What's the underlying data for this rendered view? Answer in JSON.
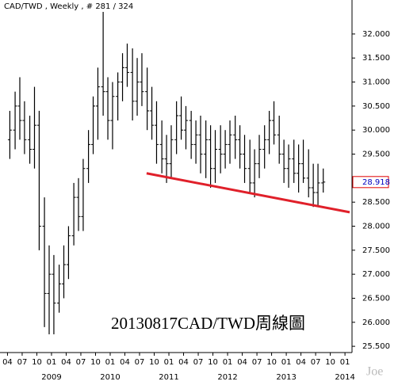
{
  "chart_data": {
    "type": "ohlc",
    "title": "CAD/TWD , Weekly , # 281 / 324",
    "annotation": "20130817CAD/TWD周線圖",
    "watermark": "Joe",
    "color": "#000000",
    "last_price": {
      "value": 28.918,
      "label": "28.918",
      "color": "#e00000"
    },
    "trendline": {
      "x": [
        2010.62,
        2014.08
      ],
      "y": [
        29.1,
        28.29
      ],
      "color": "#e0202a"
    },
    "xlim": [
      2008.19,
      2014.12
    ],
    "ylim": [
      25.37,
      32.46
    ],
    "x": [
      2008.29,
      2008.38,
      2008.46,
      2008.54,
      2008.63,
      2008.71,
      2008.79,
      2008.88,
      2008.96,
      2009.04,
      2009.13,
      2009.21,
      2009.29,
      2009.38,
      2009.46,
      2009.54,
      2009.63,
      2009.71,
      2009.79,
      2009.88,
      2009.96,
      2010.04,
      2010.13,
      2010.21,
      2010.29,
      2010.38,
      2010.46,
      2010.54,
      2010.63,
      2010.71,
      2010.79,
      2010.88,
      2010.96,
      2011.04,
      2011.13,
      2011.21,
      2011.29,
      2011.38,
      2011.46,
      2011.54,
      2011.63,
      2011.71,
      2011.79,
      2011.88,
      2011.96,
      2012.04,
      2012.13,
      2012.21,
      2012.29,
      2012.38,
      2012.46,
      2012.54,
      2012.63,
      2012.71,
      2012.79,
      2012.88,
      2012.96,
      2013.04,
      2013.13,
      2013.21,
      2013.29,
      2013.38,
      2013.46,
      2013.54,
      2013.63
    ],
    "open": [
      29.8,
      30.0,
      30.5,
      30.2,
      29.8,
      29.6,
      30.1,
      28.0,
      26.6,
      27.0,
      26.4,
      26.8,
      27.2,
      27.8,
      28.6,
      28.2,
      29.2,
      29.7,
      30.5,
      30.9,
      30.8,
      30.2,
      30.7,
      31.0,
      31.3,
      31.2,
      30.6,
      31.0,
      30.8,
      30.4,
      30.1,
      29.7,
      29.4,
      29.3,
      29.8,
      30.3,
      30.0,
      30.2,
      29.7,
      29.9,
      29.5,
      29.8,
      29.2,
      29.6,
      29.5,
      29.7,
      29.9,
      29.8,
      29.5,
      29.2,
      28.9,
      29.3,
      29.6,
      29.8,
      30.2,
      29.9,
      29.5,
      29.2,
      29.4,
      29.1,
      29.3,
      29.0,
      28.8,
      28.7,
      28.9
    ],
    "high": [
      30.4,
      30.8,
      31.1,
      30.6,
      30.3,
      30.9,
      30.4,
      28.6,
      27.6,
      27.4,
      27.2,
      27.6,
      28.0,
      28.9,
      29.0,
      29.4,
      30.0,
      30.7,
      31.3,
      32.46,
      31.1,
      31.0,
      31.2,
      31.6,
      31.8,
      31.7,
      31.5,
      31.6,
      31.3,
      30.9,
      30.6,
      30.2,
      29.9,
      30.1,
      30.6,
      30.7,
      30.5,
      30.4,
      30.2,
      30.3,
      30.2,
      30.1,
      30.0,
      30.1,
      30.0,
      30.2,
      30.3,
      30.1,
      29.9,
      29.8,
      29.6,
      29.9,
      30.1,
      30.4,
      30.6,
      30.3,
      29.8,
      29.7,
      29.8,
      29.7,
      29.8,
      29.6,
      29.3,
      29.3,
      29.2
    ],
    "low": [
      29.4,
      29.6,
      29.8,
      29.5,
      29.3,
      29.2,
      27.5,
      25.9,
      25.75,
      25.75,
      26.2,
      26.5,
      26.9,
      27.6,
      27.9,
      27.9,
      28.9,
      29.5,
      29.8,
      30.3,
      29.8,
      29.6,
      30.2,
      30.6,
      30.9,
      30.2,
      30.3,
      30.5,
      30.0,
      29.8,
      29.3,
      29.1,
      28.9,
      29.0,
      29.5,
      29.8,
      29.6,
      29.4,
      29.3,
      29.1,
      29.0,
      28.8,
      28.9,
      29.1,
      29.2,
      29.3,
      29.4,
      29.2,
      28.9,
      28.7,
      28.6,
      29.0,
      29.2,
      29.5,
      29.7,
      29.3,
      28.9,
      28.8,
      28.9,
      28.7,
      28.9,
      28.6,
      28.4,
      28.4,
      28.7
    ],
    "close": [
      30.0,
      30.5,
      30.2,
      29.8,
      29.6,
      30.1,
      28.0,
      26.6,
      27.0,
      26.4,
      26.8,
      27.2,
      27.8,
      28.6,
      28.2,
      29.2,
      29.7,
      30.5,
      30.9,
      30.8,
      30.2,
      30.7,
      31.0,
      31.3,
      31.2,
      30.6,
      31.0,
      30.8,
      30.4,
      30.1,
      29.7,
      29.4,
      29.3,
      29.8,
      30.3,
      30.0,
      30.2,
      29.7,
      29.9,
      29.5,
      29.8,
      29.2,
      29.6,
      29.5,
      29.7,
      29.9,
      29.8,
      29.5,
      29.2,
      28.9,
      29.3,
      29.6,
      29.8,
      30.2,
      29.9,
      29.5,
      29.2,
      29.4,
      29.1,
      29.3,
      29.0,
      28.8,
      28.7,
      28.9,
      28.918
    ],
    "yticks": [
      {
        "value": 32,
        "label": "32.000"
      },
      {
        "value": 31.5,
        "label": "31.500"
      },
      {
        "value": 31,
        "label": "31.000"
      },
      {
        "value": 30.5,
        "label": "30.500"
      },
      {
        "value": 30,
        "label": "30.000"
      },
      {
        "value": 29.5,
        "label": "29.500"
      },
      {
        "value": 28.5,
        "label": "28.500"
      },
      {
        "value": 28,
        "label": "28.000"
      },
      {
        "value": 27.5,
        "label": "27.500"
      },
      {
        "value": 27,
        "label": "27.000"
      },
      {
        "value": 26.5,
        "label": "26.500"
      },
      {
        "value": 26,
        "label": "26.000"
      },
      {
        "value": 25.5,
        "label": "25.500"
      }
    ],
    "xticks": [
      {
        "value": 2008.25,
        "label": "04"
      },
      {
        "value": 2008.5,
        "label": "07"
      },
      {
        "value": 2008.75,
        "label": "10"
      },
      {
        "value": 2009,
        "label": "01"
      },
      {
        "value": 2009.25,
        "label": "04"
      },
      {
        "value": 2009.5,
        "label": "07"
      },
      {
        "value": 2009.75,
        "label": "10"
      },
      {
        "value": 2010,
        "label": "01"
      },
      {
        "value": 2010.25,
        "label": "04"
      },
      {
        "value": 2010.5,
        "label": "07"
      },
      {
        "value": 2010.75,
        "label": "10"
      },
      {
        "value": 2011,
        "label": "01"
      },
      {
        "value": 2011.25,
        "label": "04"
      },
      {
        "value": 2011.5,
        "label": "07"
      },
      {
        "value": 2011.75,
        "label": "10"
      },
      {
        "value": 2012,
        "label": "01"
      },
      {
        "value": 2012.25,
        "label": "04"
      },
      {
        "value": 2012.5,
        "label": "07"
      },
      {
        "value": 2012.75,
        "label": "10"
      },
      {
        "value": 2013,
        "label": "01"
      },
      {
        "value": 2013.25,
        "label": "04"
      },
      {
        "value": 2013.5,
        "label": "07"
      },
      {
        "value": 2013.75,
        "label": "10"
      },
      {
        "value": 2014,
        "label": "01"
      }
    ],
    "year_labels": [
      {
        "value": 2009,
        "label": "2009"
      },
      {
        "value": 2010,
        "label": "2010"
      },
      {
        "value": 2011,
        "label": "2011"
      },
      {
        "value": 2012,
        "label": "2012"
      },
      {
        "value": 2013,
        "label": "2013"
      },
      {
        "value": 2014,
        "label": "2014"
      }
    ]
  }
}
